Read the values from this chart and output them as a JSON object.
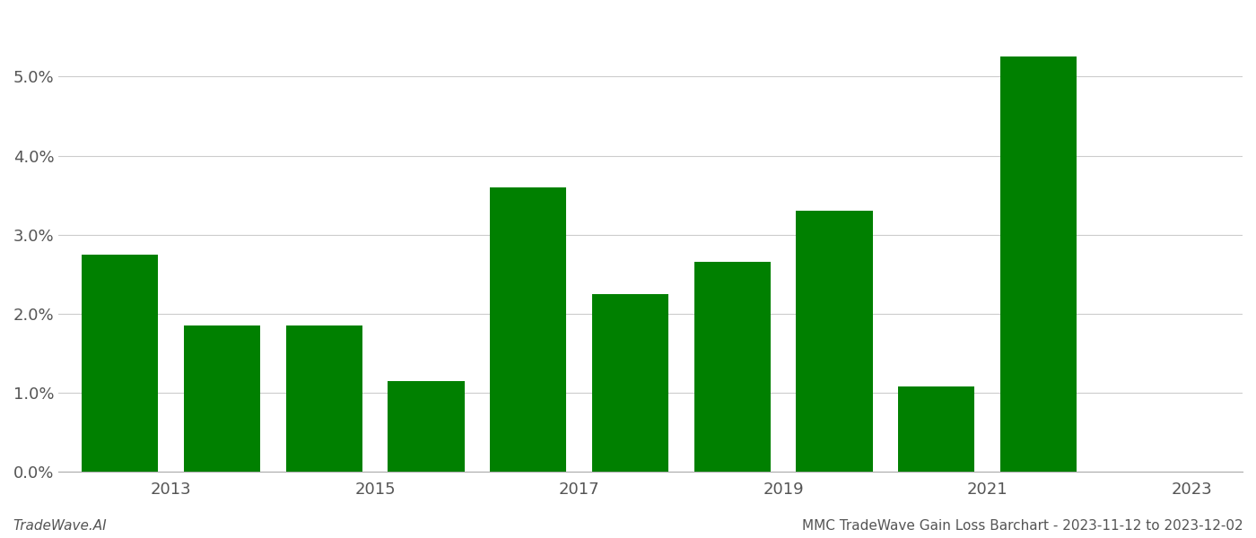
{
  "years": [
    2013,
    2014,
    2015,
    2016,
    2017,
    2018,
    2019,
    2020,
    2021,
    2022
  ],
  "values": [
    0.0275,
    0.0185,
    0.0185,
    0.0115,
    0.036,
    0.0225,
    0.0265,
    0.033,
    0.0108,
    0.0525
  ],
  "bar_color": "#008000",
  "background_color": "#ffffff",
  "grid_color": "#cccccc",
  "ylim": [
    0,
    0.058
  ],
  "yticks": [
    0.0,
    0.01,
    0.02,
    0.03,
    0.04,
    0.05
  ],
  "tick_labels": [
    "2013",
    "2015",
    "2017",
    "2019",
    "2021",
    "2023"
  ],
  "tick_positions": [
    0.5,
    2.5,
    4.5,
    6.5,
    8.5,
    10.5
  ],
  "footer_left": "TradeWave.AI",
  "footer_right": "MMC TradeWave Gain Loss Barchart - 2023-11-12 to 2023-12-02",
  "footer_fontsize": 11,
  "axis_label_fontsize": 13,
  "bar_width": 0.75
}
